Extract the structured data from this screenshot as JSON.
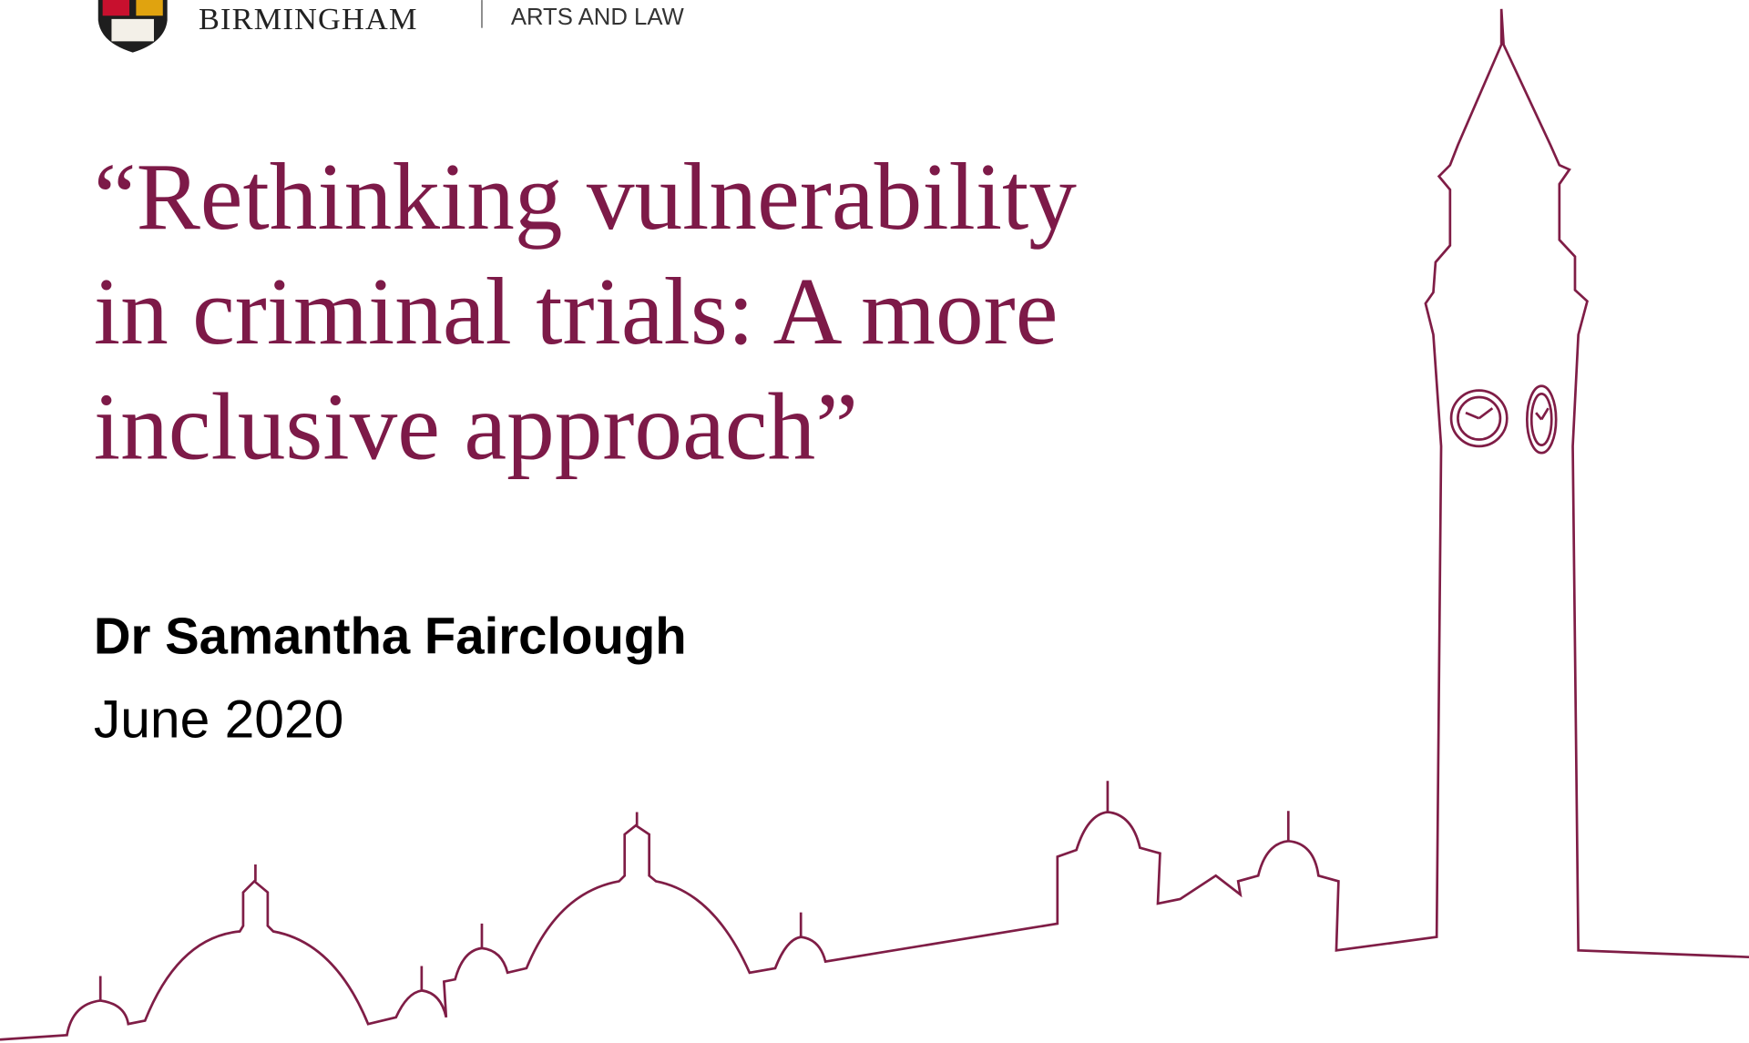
{
  "header": {
    "institution": "BIRMINGHAM",
    "college": "ARTS AND LAW"
  },
  "title_lines": [
    "“Rethinking vulnerability",
    "in criminal trials: A more",
    "inclusive approach”"
  ],
  "author": "Dr Samantha Fairclough",
  "date": "June 2020"
}
